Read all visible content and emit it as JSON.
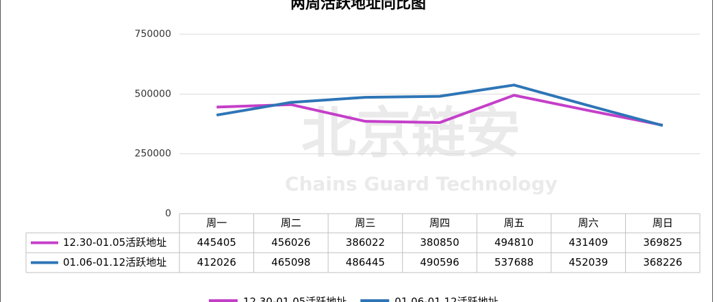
{
  "chart_data": {
    "type": "line",
    "title": "两周活跃地址同比图",
    "watermark": {
      "text": "北京链安",
      "subtext": "Chains Guard Technology"
    },
    "categories": [
      "周一",
      "周二",
      "周三",
      "周四",
      "周五",
      "周六",
      "周日"
    ],
    "series": [
      {
        "name": "12.30-01.05活跃地址",
        "color": "#c43fc9",
        "values": [
          445405,
          456026,
          386022,
          380850,
          494810,
          431409,
          369825
        ]
      },
      {
        "name": "01.06-01.12活跃地址",
        "color": "#2e75b6",
        "values": [
          412026,
          465098,
          486445,
          490596,
          537688,
          452039,
          368226
        ]
      }
    ],
    "ylim": [
      0,
      750000
    ],
    "yticks": [
      0,
      250000,
      500000,
      750000
    ],
    "grid": true,
    "legend": "bottom",
    "data_table": true
  }
}
